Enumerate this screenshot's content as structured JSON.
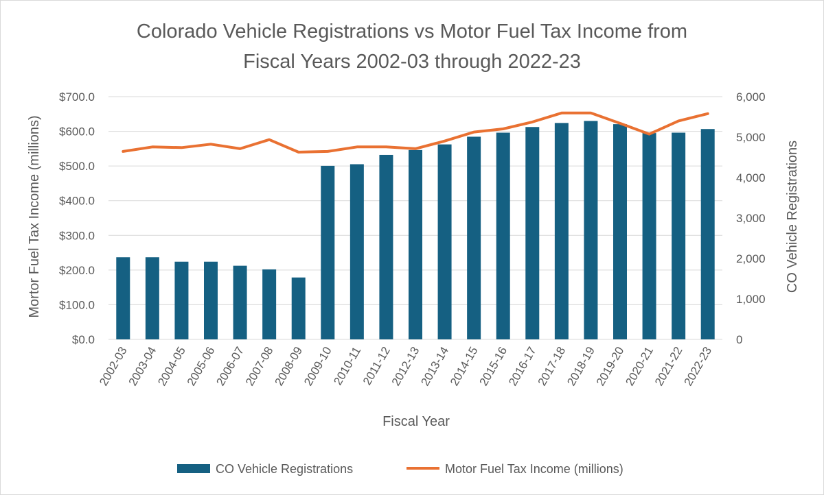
{
  "chart_data": {
    "type": "bar",
    "title": "Colorado Vehicle Registrations vs Motor Fuel Tax Income from Fiscal Years 2002-03 through 2022-23",
    "title_lines": [
      "Colorado Vehicle Registrations vs Motor Fuel Tax Income from",
      "Fiscal Years 2002-03 through 2022-23"
    ],
    "xlabel": "Fiscal Year",
    "ylabel_left": "Mortor Fuel Tax Income (millions)",
    "ylabel_right": "CO Vehicle Registrations",
    "categories": [
      "2002-03",
      "2003-04",
      "2004-05",
      "2005-06",
      "2006-07",
      "2007-08",
      "2008-09",
      "2009-10",
      "2010-11",
      "2011-12",
      "2012-13",
      "2013-14",
      "2014-15",
      "2015-16",
      "2016-17",
      "2017-18",
      "2018-19",
      "2019-20",
      "2020-21",
      "2021-22",
      "2022-23"
    ],
    "left_axis": {
      "ylim": [
        0,
        700
      ],
      "ticks": [
        0,
        100,
        200,
        300,
        400,
        500,
        600,
        700
      ],
      "tick_labels": [
        "$0.0",
        "$100.0",
        "$200.0",
        "$300.0",
        "$400.0",
        "$500.0",
        "$600.0",
        "$700.0"
      ]
    },
    "right_axis": {
      "ylim": [
        0,
        6000
      ],
      "ticks": [
        0,
        1000,
        2000,
        3000,
        4000,
        5000,
        6000
      ],
      "tick_labels": [
        "0",
        "1,000",
        "2,000",
        "3,000",
        "4,000",
        "5,000",
        "6,000"
      ]
    },
    "series": [
      {
        "name": "CO Vehicle Registrations",
        "kind": "bar",
        "axis": "right",
        "color": "#156082",
        "values": [
          2030,
          2030,
          1920,
          1920,
          1820,
          1730,
          1530,
          4290,
          4330,
          4560,
          4680,
          4820,
          5010,
          5110,
          5250,
          5350,
          5400,
          5320,
          5100,
          5110,
          5200
        ]
      },
      {
        "name": "Motor Fuel Tax Income (millions)",
        "kind": "line",
        "axis": "left",
        "color": "#E97132",
        "values": [
          542,
          555,
          553,
          563,
          550,
          576,
          540,
          542,
          555,
          555,
          550,
          572,
          598,
          607,
          627,
          653,
          653,
          623,
          592,
          630,
          651
        ]
      }
    ],
    "grid": true,
    "legend_position": "bottom"
  },
  "colors": {
    "bar": "#156082",
    "line": "#E97132",
    "grid": "#d9d9d9",
    "text": "#595959"
  }
}
